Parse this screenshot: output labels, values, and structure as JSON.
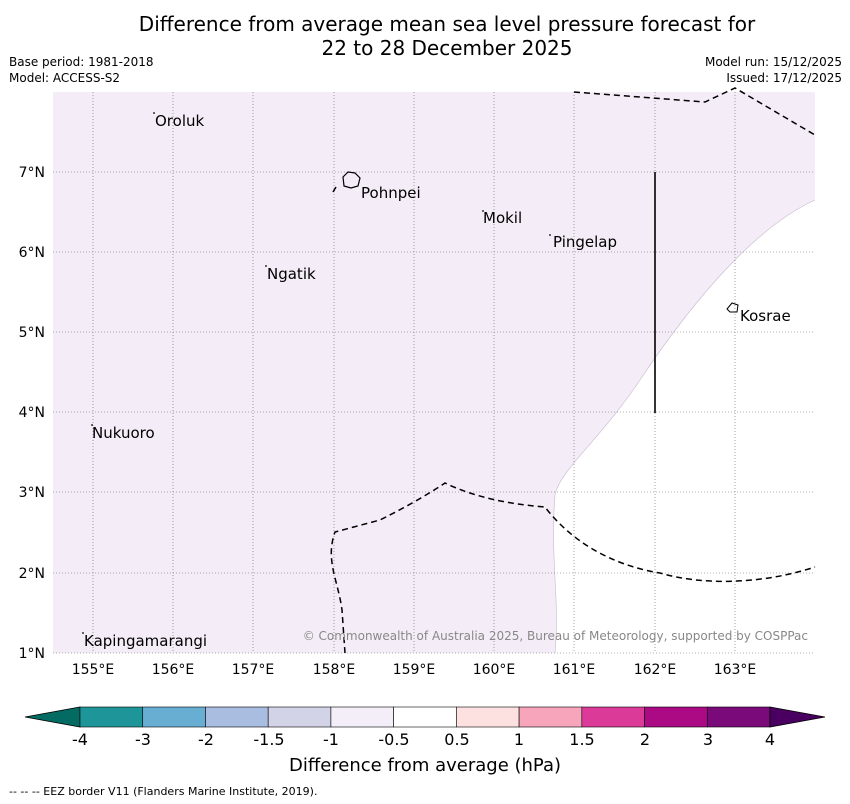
{
  "title": {
    "line1": "Difference from average mean sea level pressure forecast for",
    "line2": "22 to 28 December 2025"
  },
  "meta": {
    "base_period": "Base period: 1981-2018",
    "model": "Model: ACCESS-S2",
    "model_run": "Model run: 15/12/2025",
    "issued": "Issued: 17/12/2025"
  },
  "map": {
    "lon_labels": [
      "155°E",
      "156°E",
      "157°E",
      "158°E",
      "159°E",
      "160°E",
      "161°E",
      "162°E",
      "163°E"
    ],
    "lat_labels": [
      "7°N",
      "6°N",
      "5°N",
      "4°N",
      "3°N",
      "2°N",
      "1°N"
    ],
    "places": [
      {
        "name": "Oroluk"
      },
      {
        "name": "Pohnpei"
      },
      {
        "name": "Mokil"
      },
      {
        "name": "Pingelap"
      },
      {
        "name": "Ngatik"
      },
      {
        "name": "Kosrae"
      },
      {
        "name": "Nukuoro"
      },
      {
        "name": "Kapingamarangi"
      }
    ],
    "copyright": "© Commonwealth of Australia 2025, Bureau of Meteorology, supported by COSPPac",
    "shading": {
      "color": "#f4ecf6",
      "category": "-1 to -0.5"
    }
  },
  "colorbar": {
    "ticks": [
      "-4",
      "-3",
      "-2",
      "-1.5",
      "-1",
      "-0.5",
      "0.5",
      "1",
      "1.5",
      "2",
      "3",
      "4"
    ],
    "colors": [
      "#046b62",
      "#1e9699",
      "#68aed3",
      "#a9bde0",
      "#d3d3e8",
      "#f3eef8",
      "#ffffff",
      "#fde0e0",
      "#f6a5ba",
      "#db3a98",
      "#ac0a84",
      "#7a0a7a",
      "#4a0060"
    ],
    "label": "Difference from average (hPa)"
  },
  "footnote": "-- -- -- EEZ border V11 (Flanders Marine Institute, 2019)."
}
